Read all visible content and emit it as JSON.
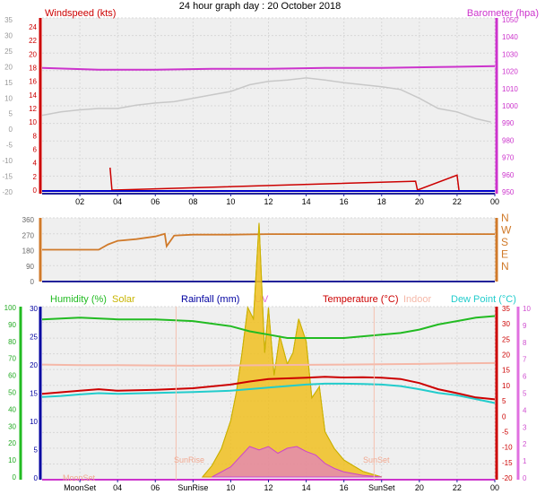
{
  "title": "24 hour graph day : 20 October 2018",
  "colors": {
    "wind": "#cc0000",
    "baro": "#cc33cc",
    "gust": "#c8c8c8",
    "dir": "#d07a2a",
    "humidity": "#22bb22",
    "solar": "#c8b400",
    "rainfall": "#0000a0",
    "uv": "#e070e0",
    "temperature": "#cc0000",
    "indoor": "#f5b8a8",
    "dewpoint": "#22cccc",
    "axis": "#222299",
    "grid": "#d8d8d8"
  },
  "time_ticks": [
    "02",
    "04",
    "06",
    "08",
    "10",
    "12",
    "14",
    "16",
    "18",
    "20",
    "22",
    "00"
  ],
  "panel1": {
    "left_label": "Windspeed (kts)",
    "right_label": "Barometer (hpa)",
    "left_ticks_red": [
      "24",
      "22",
      "20",
      "18",
      "16",
      "14",
      "12",
      "10",
      "8",
      "6",
      "4",
      "2",
      "0"
    ],
    "left_ticks_grey": [
      "35",
      "30",
      "25",
      "20",
      "15",
      "10",
      "5",
      "0",
      "-5",
      "-10",
      "-15",
      "-20"
    ],
    "right_ticks": [
      "1050",
      "1040",
      "1030",
      "1020",
      "1010",
      "1000",
      "990",
      "980",
      "970",
      "960",
      "950"
    ]
  },
  "panel2": {
    "left_ticks": [
      "360",
      "270",
      "180",
      "90",
      "0"
    ],
    "right_ticks": [
      "N",
      "W",
      "S",
      "E",
      "N"
    ]
  },
  "panel3": {
    "legend": {
      "humidity": "Humidity (%)",
      "solar": "Solar",
      "rainfall": "Rainfall (mm)",
      "uv": "UV",
      "temperature": "Temperature (°C)",
      "indoor": "Indoor",
      "dewpoint": "Dew Point (°C)"
    },
    "left_ticks_green": [
      "100",
      "90",
      "80",
      "70",
      "60",
      "50",
      "40",
      "30",
      "20",
      "10",
      "0"
    ],
    "left_ticks_blue": [
      "30",
      "25",
      "20",
      "15",
      "10",
      "5",
      "0"
    ],
    "right_ticks_red": [
      "35",
      "30",
      "25",
      "20",
      "15",
      "10",
      "5",
      "0",
      "-5",
      "-10",
      "-15",
      "-20"
    ],
    "right_ticks_pink": [
      "10",
      "9",
      "8",
      "7",
      "6",
      "5",
      "4",
      "3",
      "2",
      "1",
      "0"
    ],
    "events": {
      "moonset": "MoonSet",
      "sunrise": "SunRise",
      "sunset": "SunSet"
    },
    "bottom_ticks": [
      "MoonSet",
      "04",
      "06",
      "SunRise",
      "10",
      "12",
      "14",
      "16",
      "SunSet",
      "20",
      "22",
      "00"
    ]
  },
  "chart_data": [
    {
      "type": "line",
      "title": "24 hour graph day : 20 October 2018",
      "ylabel": "Windspeed (kts)",
      "y2label": "Barometer (hpa)",
      "ylim": [
        0,
        25
      ],
      "y2lim": [
        950,
        1060
      ],
      "series": [
        {
          "name": "Barometer (hpa)",
          "x": [
            0,
            3,
            6,
            9,
            12,
            15,
            18,
            21,
            24
          ],
          "values": [
            1022,
            1021,
            1021,
            1021.5,
            1021.5,
            1022,
            1022,
            1022.5,
            1023
          ]
        },
        {
          "x": [
            0,
            1,
            2,
            3,
            4,
            5,
            6,
            7,
            8,
            9,
            10,
            11,
            12,
            13,
            14,
            15,
            16,
            17,
            18,
            19,
            20,
            21,
            22,
            23,
            23.8
          ],
          "values": [
            11,
            11.5,
            11.8,
            12,
            12,
            12.5,
            12.8,
            13,
            13.5,
            14,
            14.5,
            15.5,
            16,
            16.2,
            16.5,
            16.2,
            15.8,
            15.5,
            15.2,
            14.8,
            13.5,
            12,
            11.5,
            10.5,
            10
          ]
        },
        {
          "name": "Windspeed (kts)",
          "x": [
            3.6,
            3.7,
            19.8,
            19.9,
            22.0,
            22.1
          ],
          "values": [
            3.3,
            0,
            1.3,
            0,
            2.2,
            0
          ]
        }
      ]
    },
    {
      "type": "line",
      "ylim": [
        0,
        360
      ],
      "series": [
        {
          "x": [
            0,
            2,
            3,
            3.5,
            4,
            5,
            6,
            6.5,
            6.6,
            7,
            8,
            10,
            12,
            14,
            16,
            18,
            20,
            22,
            24
          ],
          "values": [
            180,
            180,
            180,
            210,
            230,
            240,
            255,
            270,
            200,
            260,
            265,
            265,
            268,
            268,
            268,
            268,
            268,
            268,
            268
          ]
        }
      ]
    },
    {
      "type": "line",
      "ylabel": "Humidity (%)",
      "y2label": "Temperature (°C)",
      "ylim": [
        0,
        100
      ],
      "y2lim": [
        -20,
        35
      ],
      "series": [
        {
          "name": "Humidity (%)",
          "x": [
            0,
            2,
            4,
            6,
            8,
            10,
            11,
            12,
            13,
            14,
            15,
            16,
            17,
            18,
            19,
            20,
            21,
            22,
            23,
            24
          ],
          "values": [
            93,
            94,
            93,
            93,
            92,
            89,
            86,
            84,
            82,
            82,
            82,
            82,
            83,
            84,
            85,
            87,
            90,
            92,
            94,
            95
          ]
        },
        {
          "name": "Temperature (°C)",
          "x": [
            0,
            1,
            2,
            3,
            4,
            6,
            8,
            10,
            11,
            12,
            13,
            14,
            15,
            16,
            17,
            18,
            19,
            20,
            21,
            22,
            23,
            24
          ],
          "values": [
            7,
            7.5,
            8,
            8.5,
            8,
            8.3,
            8.8,
            10,
            11,
            11.8,
            12,
            12.2,
            12.5,
            12.3,
            12.4,
            12.2,
            11.8,
            10.5,
            8.5,
            7.2,
            5.8,
            5.2
          ]
        },
        {
          "name": "Dew Point (°C)",
          "x": [
            0,
            1,
            2,
            3,
            4,
            6,
            8,
            10,
            12,
            14,
            15,
            16,
            17,
            18,
            19,
            20,
            21,
            22,
            23,
            24
          ],
          "values": [
            6,
            6.3,
            6.8,
            7.2,
            7,
            7.3,
            7.6,
            8,
            9,
            10,
            10.3,
            10.3,
            10.2,
            10,
            9.5,
            8.5,
            7.3,
            6.5,
            5.3,
            4
          ]
        },
        {
          "name": "Indoor",
          "x": [
            0,
            2,
            4,
            6,
            8,
            10,
            12,
            14,
            16,
            18,
            20,
            22,
            24
          ],
          "values": [
            16.5,
            16.3,
            16.3,
            16.2,
            16.1,
            16.2,
            16.3,
            16.4,
            16.5,
            16.6,
            16.7,
            16.9,
            17
          ]
        },
        {
          "name": "Solar",
          "x": [
            8.5,
            9,
            9.5,
            10,
            10.3,
            10.6,
            10.9,
            11.2,
            11.5,
            11.8,
            12,
            12.3,
            12.6,
            13,
            13.3,
            13.6,
            14,
            14.3,
            14.7,
            15,
            15.5,
            16,
            16.5,
            17,
            17.5,
            18
          ],
          "values": [
            0,
            2,
            5,
            10,
            15,
            22,
            30,
            28,
            45,
            22,
            30,
            18,
            25,
            20,
            22,
            28,
            24,
            14,
            16,
            8,
            5,
            3,
            2,
            1,
            0.5,
            0
          ]
        },
        {
          "name": "UV",
          "x": [
            9,
            10,
            10.5,
            11,
            11.5,
            12,
            12.5,
            13,
            13.5,
            14,
            14.5,
            15,
            15.5,
            16,
            17,
            18
          ],
          "values": [
            0,
            0.6,
            1.2,
            1.8,
            1.6,
            1.8,
            1.4,
            1.7,
            1.8,
            1.5,
            1.3,
            0.8,
            0.5,
            0.3,
            0.1,
            0
          ]
        }
      ]
    }
  ]
}
